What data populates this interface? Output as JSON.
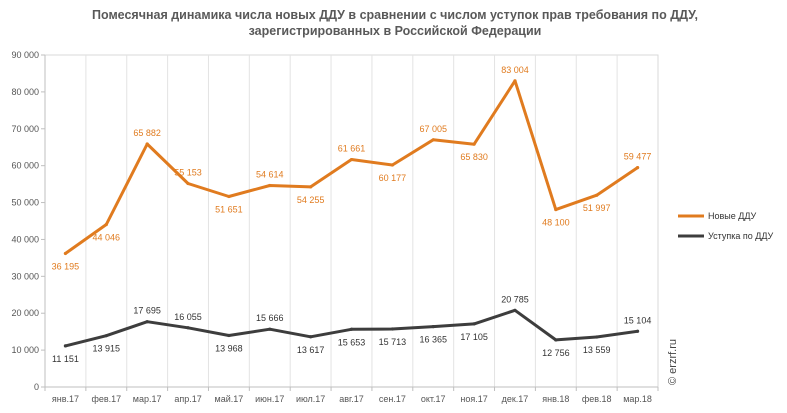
{
  "chart_data": {
    "type": "line",
    "title": "Помесячная динамика числа новых ДДУ в сравнении с числом уступок прав требования по ДДУ, зарегистрированных в Российской Федерации",
    "title_lines": [
      "Помесячная динамика числа новых ДДУ в сравнении с числом уступок прав требования по ДДУ,",
      "зарегистрированных в Российской Федерации"
    ],
    "categories": [
      "янв.17",
      "фев.17",
      "мар.17",
      "апр.17",
      "май.17",
      "июн.17",
      "июл.17",
      "авг.17",
      "сен.17",
      "окт.17",
      "ноя.17",
      "дек.17",
      "янв.18",
      "фев.18",
      "мар.18"
    ],
    "ylim": [
      0,
      90000
    ],
    "yticks": [
      0,
      10000,
      20000,
      30000,
      40000,
      50000,
      60000,
      70000,
      80000,
      90000
    ],
    "ytick_labels": [
      "0",
      "10 000",
      "20 000",
      "30 000",
      "40 000",
      "50 000",
      "60 000",
      "70 000",
      "80 000",
      "90 000"
    ],
    "grid": "vertical",
    "legend_position": "right",
    "series": [
      {
        "name": "Новые ДДУ",
        "color": "#E07B1F",
        "values": [
          36195,
          44046,
          65882,
          55153,
          51651,
          54614,
          54255,
          61661,
          60177,
          67005,
          65830,
          83004,
          48100,
          51997,
          59477
        ],
        "labels": [
          "36 195",
          "44 046",
          "65 882",
          "55 153",
          "51 651",
          "54 614",
          "54 255",
          "61 661",
          "60 177",
          "67 005",
          "65 830",
          "83 004",
          "48 100",
          "51 997",
          "59 477"
        ]
      },
      {
        "name": "Уступка по ДДУ",
        "color": "#3D3D3D",
        "values": [
          11151,
          13915,
          17695,
          16055,
          13968,
          15666,
          13617,
          15653,
          15713,
          16365,
          17105,
          20785,
          12756,
          13559,
          15104
        ],
        "labels": [
          "11 151",
          "13 915",
          "17 695",
          "16 055",
          "13 968",
          "15 666",
          "13 617",
          "15 653",
          "15 713",
          "16 365",
          "17 105",
          "20 785",
          "12 756",
          "13 559",
          "15 104"
        ]
      }
    ]
  },
  "watermark": "© erzrf.ru"
}
